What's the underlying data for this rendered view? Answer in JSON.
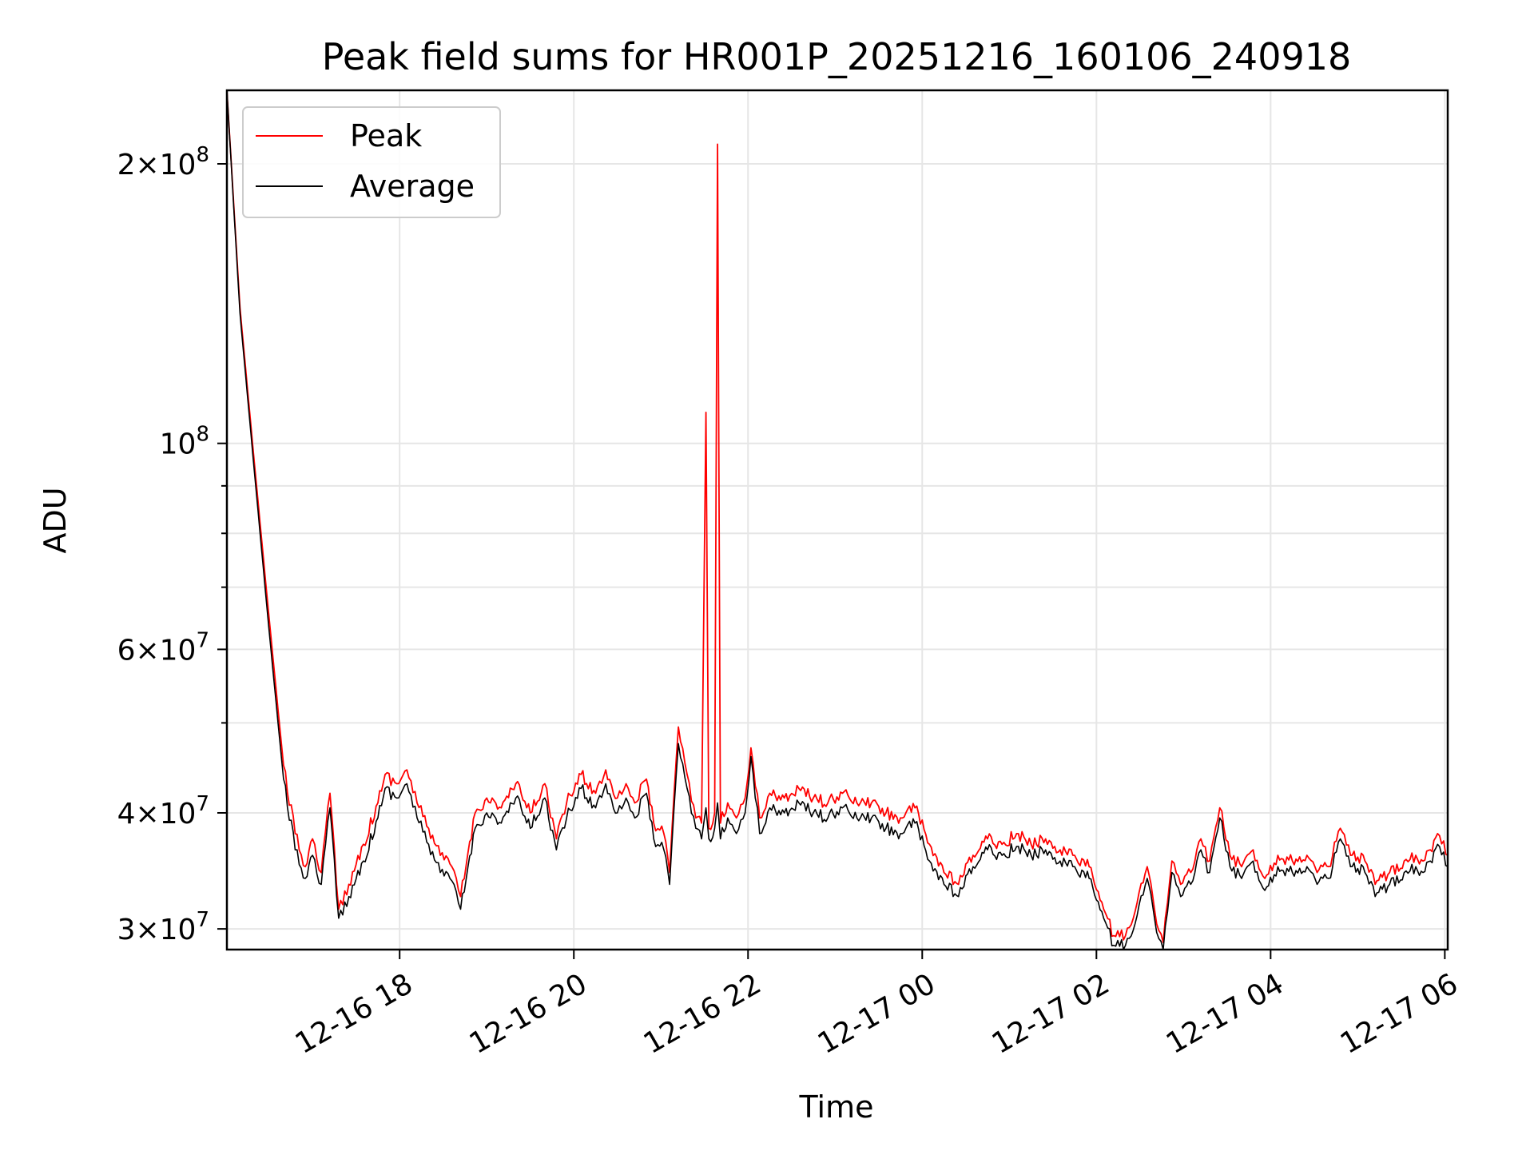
{
  "chart_data": {
    "type": "line",
    "title": "Peak field sums for HR001P_20251216_160106_240918",
    "xlabel": "Time",
    "ylabel": "ADU",
    "yscale": "log",
    "ylim": [
      28500000,
      240000000
    ],
    "xlim": [
      "2025-12-16 16:01",
      "2025-12-17 06:02"
    ],
    "grid": true,
    "legend": "top-left",
    "x_ticks": [
      {
        "value": "2025-12-16 18:00",
        "label": "12-16 18"
      },
      {
        "value": "2025-12-16 20:00",
        "label": "12-16 20"
      },
      {
        "value": "2025-12-16 22:00",
        "label": "12-16 22"
      },
      {
        "value": "2025-12-17 00:00",
        "label": "12-17 00"
      },
      {
        "value": "2025-12-17 02:00",
        "label": "12-17 02"
      },
      {
        "value": "2025-12-17 04:00",
        "label": "12-17 04"
      },
      {
        "value": "2025-12-17 06:00",
        "label": "12-17 06"
      }
    ],
    "y_ticks": [
      {
        "value": 30000000,
        "mantissa": "3",
        "exp": "7"
      },
      {
        "value": 40000000,
        "mantissa": "4",
        "exp": "7"
      },
      {
        "value": 60000000,
        "mantissa": "6",
        "exp": "7"
      },
      {
        "value": 100000000,
        "mantissa": "",
        "exp": "8"
      },
      {
        "value": 200000000,
        "mantissa": "2",
        "exp": "8"
      }
    ],
    "y_minor": [
      50000000,
      70000000,
      80000000,
      90000000
    ],
    "series": [
      {
        "name": "Peak",
        "color": "#ff0000",
        "points": [
          [
            "2025-12-16 16:01",
            240000000
          ],
          [
            "2025-12-16 16:10",
            140000000
          ],
          [
            "2025-12-16 16:20",
            95000000
          ],
          [
            "2025-12-16 16:30",
            65000000
          ],
          [
            "2025-12-16 16:40",
            45000000
          ],
          [
            "2025-12-16 16:48",
            38000000
          ],
          [
            "2025-12-16 16:55",
            35000000
          ],
          [
            "2025-12-16 17:00",
            37500000
          ],
          [
            "2025-12-16 17:06",
            34500000
          ],
          [
            "2025-12-16 17:12",
            42000000
          ],
          [
            "2025-12-16 17:18",
            31500000
          ],
          [
            "2025-12-16 17:25",
            33500000
          ],
          [
            "2025-12-16 17:35",
            37000000
          ],
          [
            "2025-12-16 17:45",
            41000000
          ],
          [
            "2025-12-16 17:50",
            44000000
          ],
          [
            "2025-12-16 17:58",
            43000000
          ],
          [
            "2025-12-16 18:05",
            44500000
          ],
          [
            "2025-12-16 18:12",
            41000000
          ],
          [
            "2025-12-16 18:20",
            38500000
          ],
          [
            "2025-12-16 18:28",
            36000000
          ],
          [
            "2025-12-16 18:36",
            35000000
          ],
          [
            "2025-12-16 18:42",
            32500000
          ],
          [
            "2025-12-16 18:52",
            40000000
          ],
          [
            "2025-12-16 19:00",
            41500000
          ],
          [
            "2025-12-16 19:10",
            40500000
          ],
          [
            "2025-12-16 19:20",
            43000000
          ],
          [
            "2025-12-16 19:30",
            40000000
          ],
          [
            "2025-12-16 19:40",
            43000000
          ],
          [
            "2025-12-16 19:48",
            37500000
          ],
          [
            "2025-12-16 19:55",
            41000000
          ],
          [
            "2025-12-16 20:05",
            44000000
          ],
          [
            "2025-12-16 20:15",
            42000000
          ],
          [
            "2025-12-16 20:22",
            44500000
          ],
          [
            "2025-12-16 20:30",
            41500000
          ],
          [
            "2025-12-16 20:36",
            43000000
          ],
          [
            "2025-12-16 20:42",
            41000000
          ],
          [
            "2025-12-16 20:50",
            43500000
          ],
          [
            "2025-12-16 20:55",
            39000000
          ],
          [
            "2025-12-16 21:02",
            38000000
          ],
          [
            "2025-12-16 21:06",
            34500000
          ],
          [
            "2025-12-16 21:12",
            49500000
          ],
          [
            "2025-12-16 21:18",
            44000000
          ],
          [
            "2025-12-16 21:24",
            39500000
          ],
          [
            "2025-12-16 21:28",
            39000000
          ],
          [
            "2025-12-16 21:31",
            108000000
          ],
          [
            "2025-12-16 21:33",
            38500000
          ],
          [
            "2025-12-16 21:37",
            40000000
          ],
          [
            "2025-12-16 21:39",
            210000000
          ],
          [
            "2025-12-16 21:41",
            39000000
          ],
          [
            "2025-12-16 21:46",
            41000000
          ],
          [
            "2025-12-16 21:52",
            39500000
          ],
          [
            "2025-12-16 21:58",
            41500000
          ],
          [
            "2025-12-16 22:02",
            47000000
          ],
          [
            "2025-12-16 22:08",
            39500000
          ],
          [
            "2025-12-16 22:15",
            42000000
          ],
          [
            "2025-12-16 22:25",
            41500000
          ],
          [
            "2025-12-16 22:35",
            42500000
          ],
          [
            "2025-12-16 22:45",
            41500000
          ],
          [
            "2025-12-16 22:55",
            41000000
          ],
          [
            "2025-12-16 23:05",
            42000000
          ],
          [
            "2025-12-16 23:15",
            41000000
          ],
          [
            "2025-12-16 23:25",
            41000000
          ],
          [
            "2025-12-16 23:35",
            40000000
          ],
          [
            "2025-12-16 23:45",
            39500000
          ],
          [
            "2025-12-16 23:55",
            40500000
          ],
          [
            "2025-12-17 00:05",
            37000000
          ],
          [
            "2025-12-17 00:15",
            34500000
          ],
          [
            "2025-12-17 00:25",
            33500000
          ],
          [
            "2025-12-17 00:35",
            36000000
          ],
          [
            "2025-12-17 00:45",
            37500000
          ],
          [
            "2025-12-17 00:55",
            37000000
          ],
          [
            "2025-12-17 01:05",
            38000000
          ],
          [
            "2025-12-17 01:15",
            37000000
          ],
          [
            "2025-12-17 01:25",
            37500000
          ],
          [
            "2025-12-17 01:35",
            36500000
          ],
          [
            "2025-12-17 01:45",
            36000000
          ],
          [
            "2025-12-17 01:55",
            35000000
          ],
          [
            "2025-12-17 02:05",
            31500000
          ],
          [
            "2025-12-17 02:12",
            29500000
          ],
          [
            "2025-12-17 02:20",
            29500000
          ],
          [
            "2025-12-17 02:28",
            32000000
          ],
          [
            "2025-12-17 02:35",
            35000000
          ],
          [
            "2025-12-17 02:40",
            31500000
          ],
          [
            "2025-12-17 02:46",
            29000000
          ],
          [
            "2025-12-17 02:52",
            35500000
          ],
          [
            "2025-12-17 02:58",
            33500000
          ],
          [
            "2025-12-17 03:05",
            34500000
          ],
          [
            "2025-12-17 03:12",
            37500000
          ],
          [
            "2025-12-17 03:18",
            35500000
          ],
          [
            "2025-12-17 03:25",
            40500000
          ],
          [
            "2025-12-17 03:32",
            36000000
          ],
          [
            "2025-12-17 03:40",
            35000000
          ],
          [
            "2025-12-17 03:48",
            36500000
          ],
          [
            "2025-12-17 03:56",
            34000000
          ],
          [
            "2025-12-17 04:05",
            36000000
          ],
          [
            "2025-12-17 04:15",
            35500000
          ],
          [
            "2025-12-17 04:25",
            36000000
          ],
          [
            "2025-12-17 04:32",
            34500000
          ],
          [
            "2025-12-17 04:40",
            35000000
          ],
          [
            "2025-12-17 04:48",
            38500000
          ],
          [
            "2025-12-17 04:55",
            36000000
          ],
          [
            "2025-12-17 05:05",
            35500000
          ],
          [
            "2025-12-17 05:12",
            33500000
          ],
          [
            "2025-12-17 05:22",
            34500000
          ],
          [
            "2025-12-17 05:32",
            35500000
          ],
          [
            "2025-12-17 05:40",
            36000000
          ],
          [
            "2025-12-17 05:45",
            35500000
          ],
          [
            "2025-12-17 05:50",
            36500000
          ],
          [
            "2025-12-17 05:55",
            38000000
          ],
          [
            "2025-12-17 06:02",
            36000000
          ]
        ]
      },
      {
        "name": "Average",
        "color": "#000000",
        "points": [
          [
            "2025-12-16 16:01",
            240000000
          ],
          [
            "2025-12-16 16:10",
            138000000
          ],
          [
            "2025-12-16 16:20",
            93000000
          ],
          [
            "2025-12-16 16:30",
            63000000
          ],
          [
            "2025-12-16 16:40",
            43500000
          ],
          [
            "2025-12-16 16:48",
            36500000
          ],
          [
            "2025-12-16 16:55",
            34000000
          ],
          [
            "2025-12-16 17:00",
            36000000
          ],
          [
            "2025-12-16 17:06",
            33500000
          ],
          [
            "2025-12-16 17:12",
            40500000
          ],
          [
            "2025-12-16 17:18",
            30800000
          ],
          [
            "2025-12-16 17:25",
            32500000
          ],
          [
            "2025-12-16 17:35",
            35500000
          ],
          [
            "2025-12-16 17:45",
            39500000
          ],
          [
            "2025-12-16 17:50",
            42500000
          ],
          [
            "2025-12-16 17:58",
            41500000
          ],
          [
            "2025-12-16 18:05",
            43000000
          ],
          [
            "2025-12-16 18:12",
            39500000
          ],
          [
            "2025-12-16 18:20",
            37000000
          ],
          [
            "2025-12-16 18:28",
            34500000
          ],
          [
            "2025-12-16 18:36",
            33800000
          ],
          [
            "2025-12-16 18:42",
            31500000
          ],
          [
            "2025-12-16 18:52",
            38500000
          ],
          [
            "2025-12-16 19:00",
            40000000
          ],
          [
            "2025-12-16 19:10",
            39000000
          ],
          [
            "2025-12-16 19:20",
            41500000
          ],
          [
            "2025-12-16 19:30",
            38500000
          ],
          [
            "2025-12-16 19:40",
            41500000
          ],
          [
            "2025-12-16 19:48",
            36500000
          ],
          [
            "2025-12-16 19:55",
            39500000
          ],
          [
            "2025-12-16 20:05",
            42500000
          ],
          [
            "2025-12-16 20:15",
            40500000
          ],
          [
            "2025-12-16 20:22",
            43000000
          ],
          [
            "2025-12-16 20:30",
            40000000
          ],
          [
            "2025-12-16 20:36",
            41500000
          ],
          [
            "2025-12-16 20:42",
            39500000
          ],
          [
            "2025-12-16 20:50",
            42000000
          ],
          [
            "2025-12-16 20:55",
            37500000
          ],
          [
            "2025-12-16 21:02",
            36500000
          ],
          [
            "2025-12-16 21:06",
            33500000
          ],
          [
            "2025-12-16 21:12",
            47500000
          ],
          [
            "2025-12-16 21:18",
            42500000
          ],
          [
            "2025-12-16 21:24",
            38500000
          ],
          [
            "2025-12-16 21:28",
            37500000
          ],
          [
            "2025-12-16 21:31",
            40500000
          ],
          [
            "2025-12-16 21:33",
            37500000
          ],
          [
            "2025-12-16 21:37",
            38500000
          ],
          [
            "2025-12-16 21:39",
            41000000
          ],
          [
            "2025-12-16 21:41",
            37500000
          ],
          [
            "2025-12-16 21:46",
            39500000
          ],
          [
            "2025-12-16 21:52",
            38000000
          ],
          [
            "2025-12-16 21:58",
            40000000
          ],
          [
            "2025-12-16 22:02",
            46000000
          ],
          [
            "2025-12-16 22:08",
            38000000
          ],
          [
            "2025-12-16 22:15",
            40500000
          ],
          [
            "2025-12-16 22:25",
            40000000
          ],
          [
            "2025-12-16 22:35",
            41000000
          ],
          [
            "2025-12-16 22:45",
            40000000
          ],
          [
            "2025-12-16 22:55",
            39500000
          ],
          [
            "2025-12-16 23:05",
            40500000
          ],
          [
            "2025-12-16 23:15",
            39500000
          ],
          [
            "2025-12-16 23:25",
            39500000
          ],
          [
            "2025-12-16 23:35",
            38500000
          ],
          [
            "2025-12-16 23:45",
            38000000
          ],
          [
            "2025-12-16 23:55",
            39000000
          ],
          [
            "2025-12-17 00:05",
            35500000
          ],
          [
            "2025-12-17 00:15",
            33500000
          ],
          [
            "2025-12-17 00:25",
            32500000
          ],
          [
            "2025-12-17 00:35",
            35000000
          ],
          [
            "2025-12-17 00:45",
            36500000
          ],
          [
            "2025-12-17 00:55",
            36000000
          ],
          [
            "2025-12-17 01:05",
            36800000
          ],
          [
            "2025-12-17 01:15",
            36000000
          ],
          [
            "2025-12-17 01:25",
            36500000
          ],
          [
            "2025-12-17 01:35",
            35500000
          ],
          [
            "2025-12-17 01:45",
            35000000
          ],
          [
            "2025-12-17 01:55",
            34000000
          ],
          [
            "2025-12-17 02:05",
            30800000
          ],
          [
            "2025-12-17 02:12",
            28800000
          ],
          [
            "2025-12-17 02:20",
            28800000
          ],
          [
            "2025-12-17 02:28",
            31000000
          ],
          [
            "2025-12-17 02:35",
            34000000
          ],
          [
            "2025-12-17 02:40",
            30800000
          ],
          [
            "2025-12-17 02:46",
            28500000
          ],
          [
            "2025-12-17 02:52",
            34500000
          ],
          [
            "2025-12-17 02:58",
            32500000
          ],
          [
            "2025-12-17 03:05",
            33500000
          ],
          [
            "2025-12-17 03:12",
            36500000
          ],
          [
            "2025-12-17 03:18",
            34500000
          ],
          [
            "2025-12-17 03:25",
            39500000
          ],
          [
            "2025-12-17 03:32",
            35000000
          ],
          [
            "2025-12-17 03:40",
            34000000
          ],
          [
            "2025-12-17 03:48",
            35500000
          ],
          [
            "2025-12-17 03:56",
            33000000
          ],
          [
            "2025-12-17 04:05",
            35000000
          ],
          [
            "2025-12-17 04:15",
            34500000
          ],
          [
            "2025-12-17 04:25",
            35000000
          ],
          [
            "2025-12-17 04:32",
            33500000
          ],
          [
            "2025-12-17 04:40",
            34000000
          ],
          [
            "2025-12-17 04:48",
            37500000
          ],
          [
            "2025-12-17 04:55",
            35000000
          ],
          [
            "2025-12-17 05:05",
            34500000
          ],
          [
            "2025-12-17 05:12",
            32500000
          ],
          [
            "2025-12-17 05:22",
            33500000
          ],
          [
            "2025-12-17 05:32",
            34500000
          ],
          [
            "2025-12-17 05:40",
            35000000
          ],
          [
            "2025-12-17 05:45",
            34500000
          ],
          [
            "2025-12-17 05:50",
            35500000
          ],
          [
            "2025-12-17 05:55",
            37000000
          ],
          [
            "2025-12-17 06:02",
            35000000
          ]
        ]
      }
    ]
  }
}
